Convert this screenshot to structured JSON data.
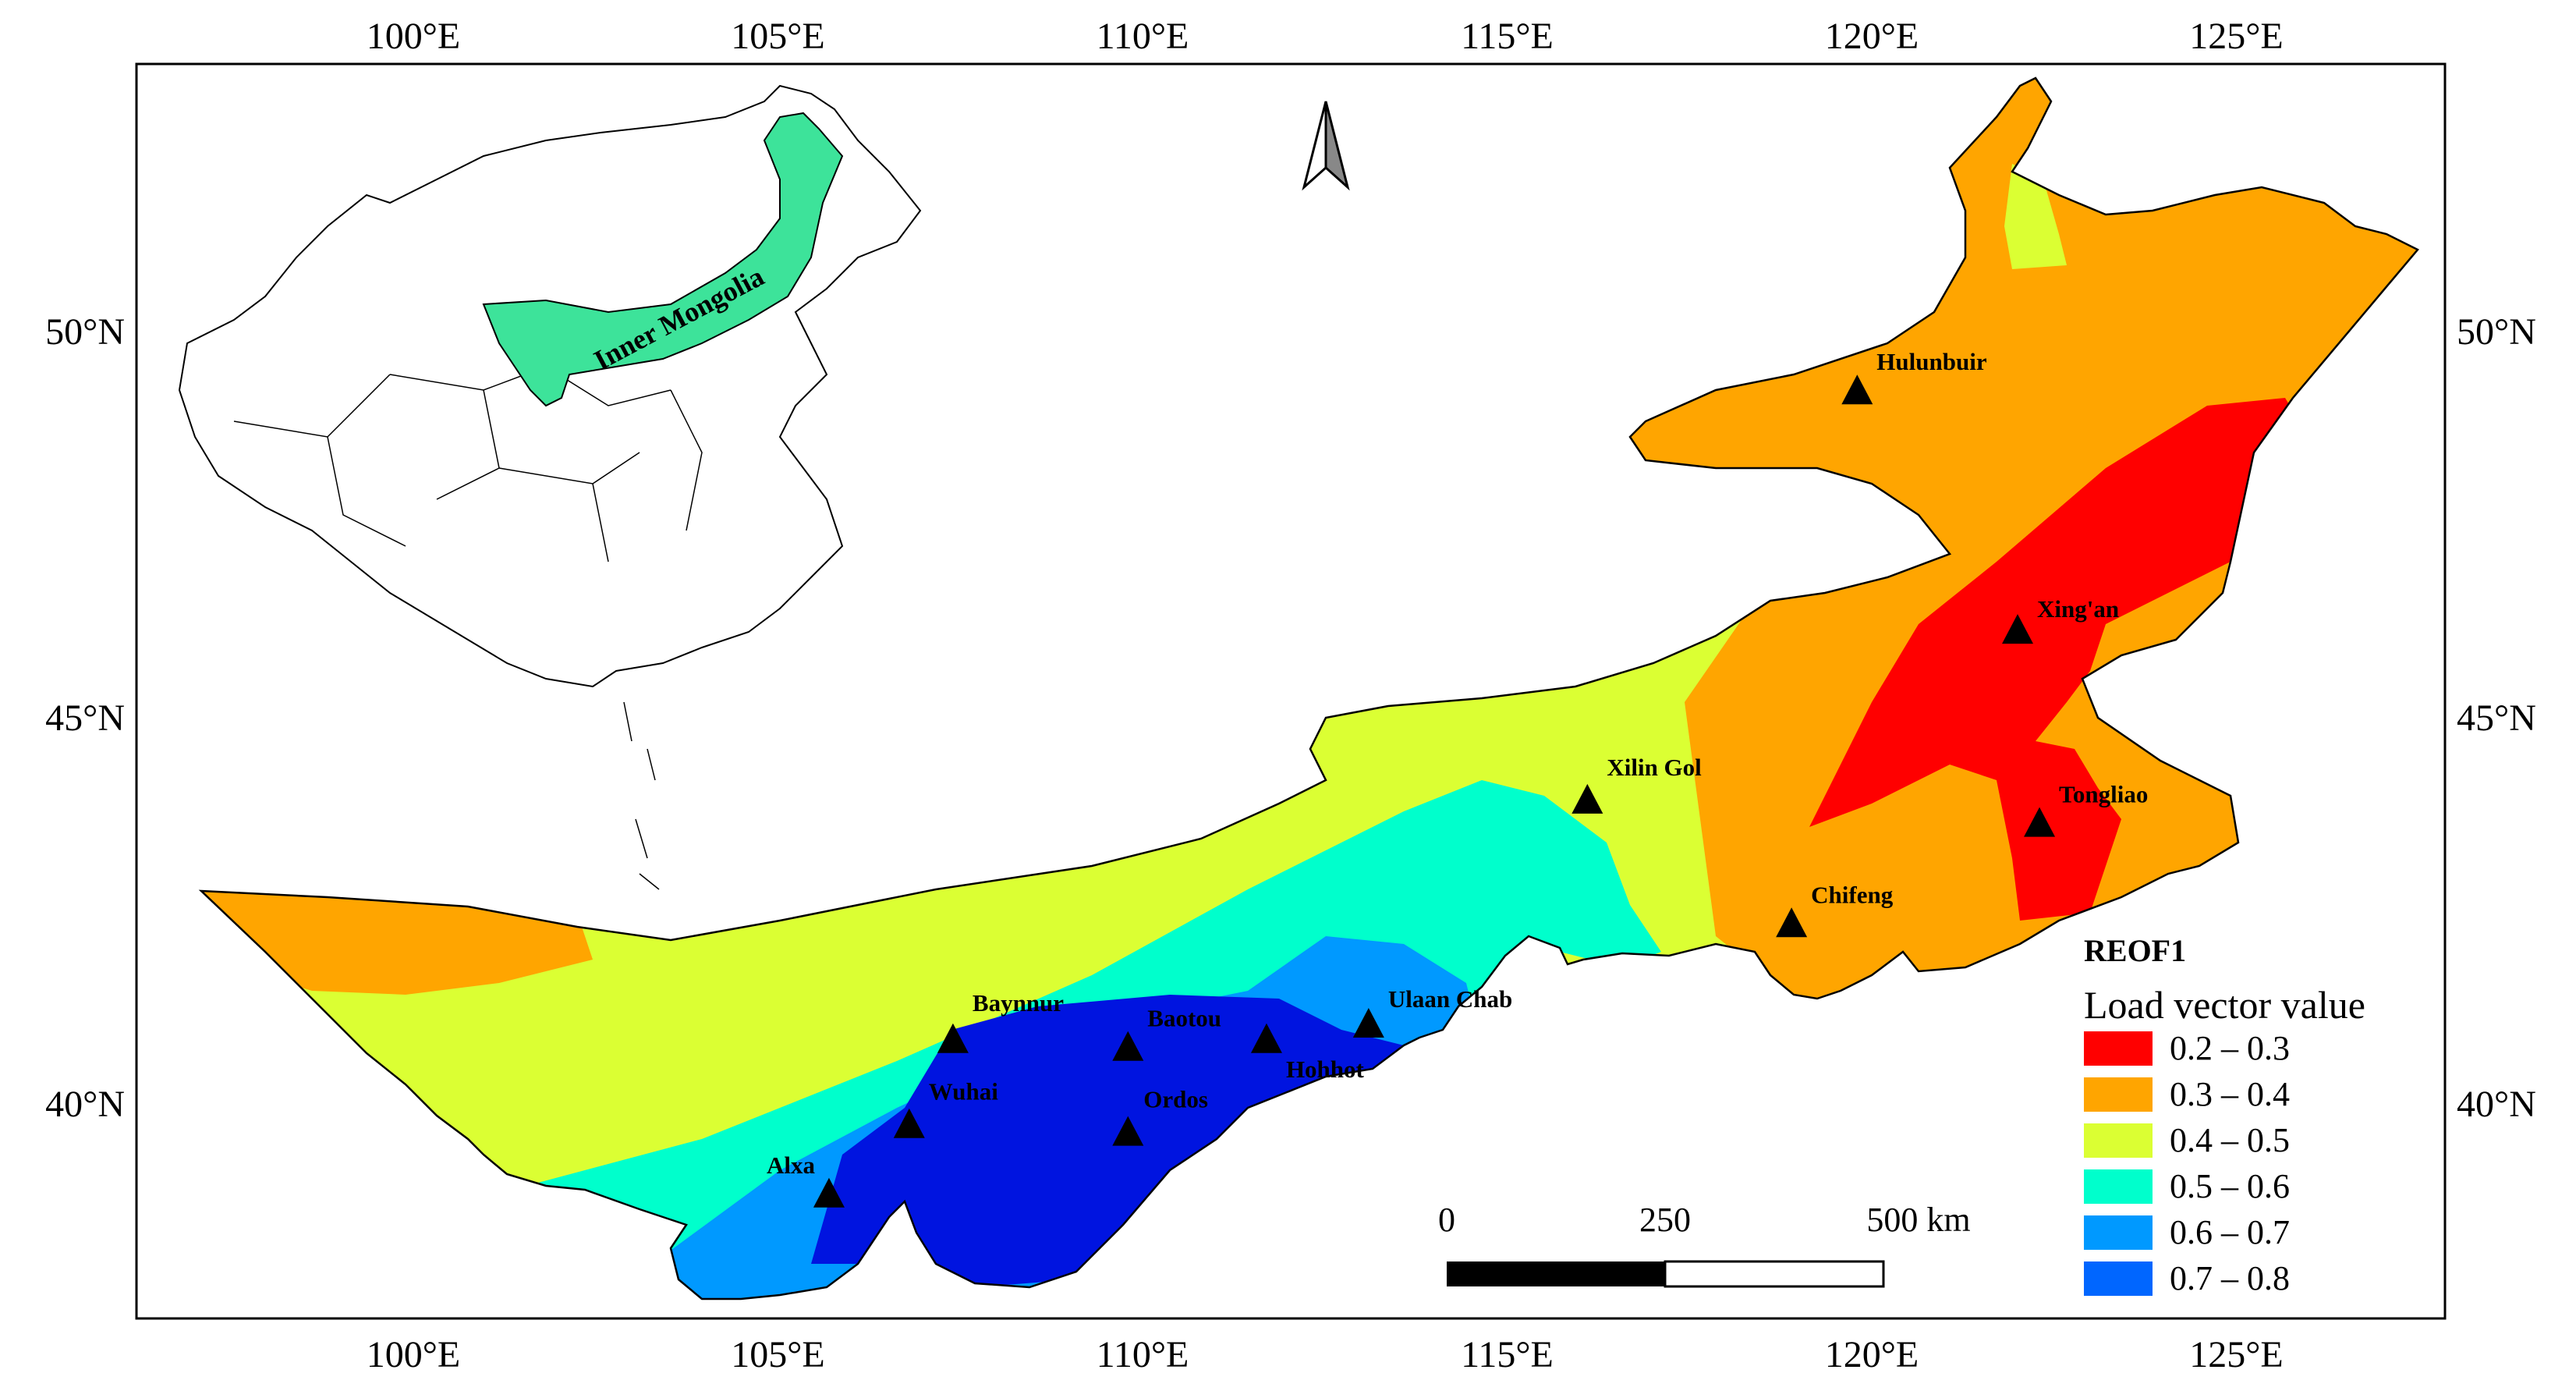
{
  "axes": {
    "top_ticks": [
      "100°E",
      "105°E",
      "110°E",
      "115°E",
      "120°E",
      "125°E"
    ],
    "bottom_ticks": [
      "100°E",
      "105°E",
      "110°E",
      "115°E",
      "120°E",
      "125°E"
    ],
    "left_ticks": [
      "50°N",
      "45°N",
      "40°N"
    ],
    "right_ticks": [
      "50°N",
      "45°N",
      "40°N"
    ]
  },
  "inset": {
    "label": "Inner Mongolia",
    "highlight_color": "#3de39a"
  },
  "stations": [
    {
      "name": "Hulunbuir",
      "lon": 119.8,
      "lat": 49.2
    },
    {
      "name": "Xing'an",
      "lon": 122.0,
      "lat": 46.1
    },
    {
      "name": "Xilin Gol",
      "lon": 116.1,
      "lat": 43.9
    },
    {
      "name": "Tongliao",
      "lon": 122.3,
      "lat": 43.6
    },
    {
      "name": "Chifeng",
      "lon": 118.9,
      "lat": 42.3
    },
    {
      "name": "Ulaan Chab",
      "lon": 113.1,
      "lat": 41.0
    },
    {
      "name": "Hohhot",
      "lon": 111.7,
      "lat": 40.8
    },
    {
      "name": "Baotou",
      "lon": 109.8,
      "lat": 40.7
    },
    {
      "name": "Baynnur",
      "lon": 107.4,
      "lat": 40.8
    },
    {
      "name": "Wuhai",
      "lon": 106.8,
      "lat": 39.7
    },
    {
      "name": "Ordos",
      "lon": 109.8,
      "lat": 39.6
    },
    {
      "name": "Alxa",
      "lon": 105.7,
      "lat": 38.8
    }
  ],
  "legend": {
    "title": "REOF1",
    "subtitle": "Load vector value",
    "classes": [
      {
        "label": "0.2 – 0.3",
        "color": "#ff0000"
      },
      {
        "label": "0.3 – 0.4",
        "color": "#ffa500"
      },
      {
        "label": "0.4 – 0.5",
        "color": "#dbff33"
      },
      {
        "label": "0.5 – 0.6",
        "color": "#00ffcc"
      },
      {
        "label": "0.6 – 0.7",
        "color": "#0099ff"
      },
      {
        "label": "0.7 – 0.8",
        "color": "#0066ff"
      }
    ]
  },
  "scale_bar": {
    "labels": [
      "0",
      "250",
      "500 km"
    ]
  },
  "colors": {
    "deep_blue_zone": "#0014e0",
    "frame": "#000000"
  }
}
